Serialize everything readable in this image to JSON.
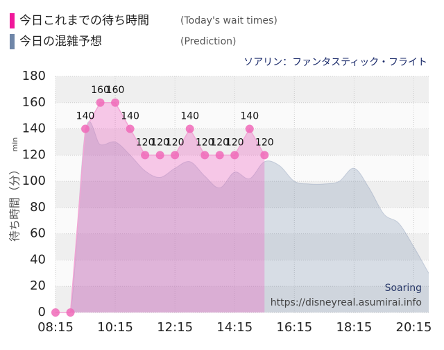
{
  "chart_data": {
    "type": "area",
    "subtitle": "ソアリン：ファンタスティック・フライト",
    "ylabel": "待ち時間（分）",
    "ylabel_unit": "min",
    "watermark": [
      "Soaring",
      "https://disneyreal.asumirai.info"
    ],
    "xlim": [
      "08:15",
      "20:45"
    ],
    "xticks": [
      "08:15",
      "10:15",
      "12:15",
      "14:15",
      "16:15",
      "18:15",
      "20:15"
    ],
    "ylim": [
      0,
      180
    ],
    "yticks": [
      0,
      20,
      40,
      60,
      80,
      100,
      120,
      140,
      160,
      180
    ],
    "grid": true,
    "series": [
      {
        "name": "今日これまでの待ち時間",
        "note": "(Today's wait times)",
        "color": "#f0189a",
        "x": [
          "08:15",
          "08:45",
          "09:15",
          "09:45",
          "10:15",
          "10:45",
          "11:15",
          "11:45",
          "12:15",
          "12:45",
          "13:15",
          "13:45",
          "14:15",
          "14:45",
          "15:15"
        ],
        "values": [
          0,
          0,
          140,
          160,
          160,
          140,
          120,
          120,
          120,
          140,
          120,
          120,
          120,
          140,
          120
        ]
      },
      {
        "name": "今日の混雑予想",
        "note": "(Prediction)",
        "color": "#6f86a8",
        "x": [
          "08:15",
          "08:45",
          "09:15",
          "09:45",
          "10:15",
          "10:45",
          "11:15",
          "11:45",
          "12:15",
          "12:45",
          "13:15",
          "13:45",
          "14:15",
          "14:45",
          "15:15",
          "15:45",
          "16:15",
          "16:45",
          "17:15",
          "17:45",
          "18:15",
          "18:45",
          "19:15",
          "19:45",
          "20:15",
          "20:45"
        ],
        "values": [
          0,
          0,
          138,
          128,
          130,
          120,
          108,
          103,
          110,
          115,
          104,
          95,
          107,
          102,
          115,
          112,
          100,
          98,
          98,
          100,
          110,
          95,
          75,
          68,
          50,
          30
        ]
      }
    ]
  }
}
